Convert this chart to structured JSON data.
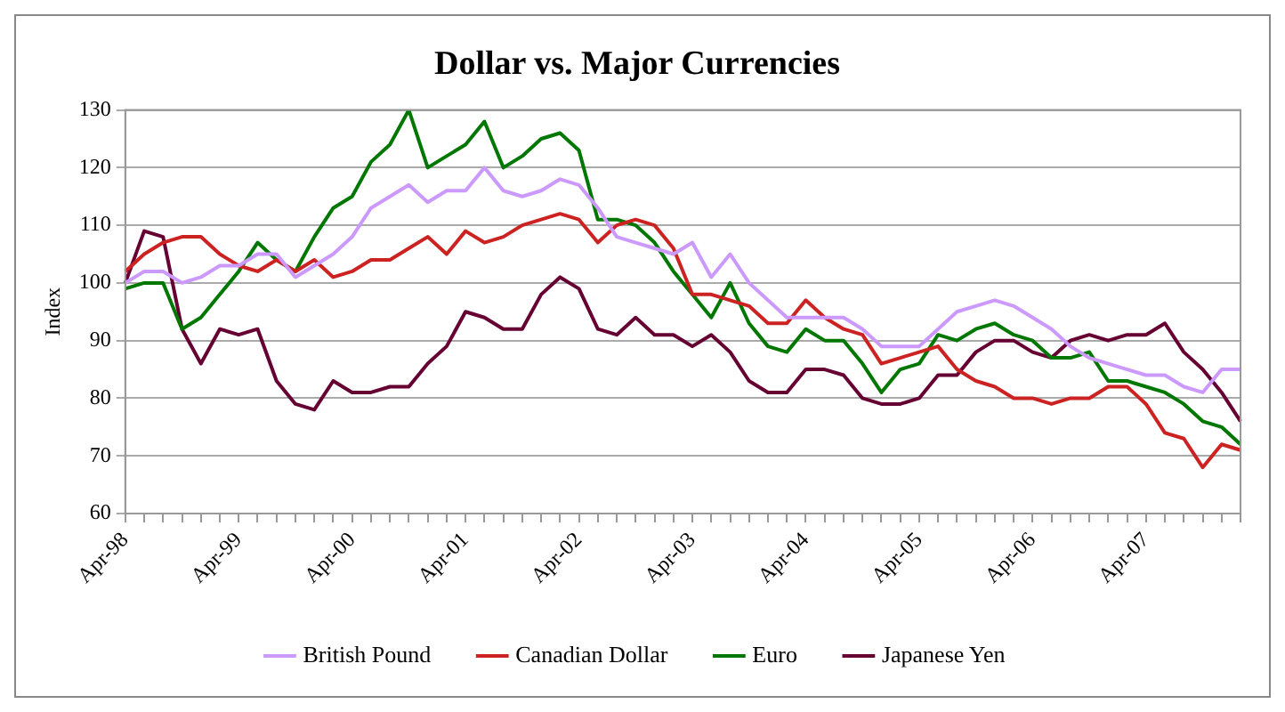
{
  "chart_data": {
    "type": "line",
    "title": "Dollar vs. Major Currencies",
    "ylabel": "Index",
    "categories": [
      "Apr-98",
      null,
      null,
      null,
      null,
      null,
      "Apr-99",
      null,
      null,
      null,
      null,
      null,
      "Apr-00",
      null,
      null,
      null,
      null,
      null,
      "Apr-01",
      null,
      null,
      null,
      null,
      null,
      "Apr-02",
      null,
      null,
      null,
      null,
      null,
      "Apr-03",
      null,
      null,
      null,
      null,
      null,
      "Apr-04",
      null,
      null,
      null,
      null,
      null,
      "Apr-05",
      null,
      null,
      null,
      null,
      null,
      "Apr-06",
      null,
      null,
      null,
      null,
      null,
      "Apr-07",
      null,
      null,
      null,
      null,
      null
    ],
    "series": [
      {
        "name": "British Pound",
        "color": "#cc99ff",
        "values": [
          100,
          102,
          102,
          100,
          101,
          103,
          103,
          105,
          105,
          101,
          103,
          105,
          108,
          113,
          115,
          117,
          114,
          116,
          116,
          120,
          116,
          115,
          116,
          118,
          117,
          113,
          108,
          107,
          106,
          105,
          107,
          101,
          105,
          100,
          97,
          94,
          94,
          94,
          94,
          92,
          89,
          89,
          89,
          92,
          95,
          96,
          97,
          96,
          94,
          92,
          89,
          87,
          86,
          85,
          84,
          84,
          82,
          81,
          85,
          85
        ]
      },
      {
        "name": "Canadian Dollar",
        "color": "#cc2222",
        "values": [
          102,
          105,
          107,
          108,
          108,
          105,
          103,
          102,
          104,
          102,
          104,
          101,
          102,
          104,
          104,
          106,
          108,
          105,
          109,
          107,
          108,
          110,
          111,
          112,
          111,
          107,
          110,
          111,
          110,
          106,
          98,
          98,
          97,
          96,
          93,
          93,
          97,
          94,
          92,
          91,
          86,
          87,
          88,
          89,
          85,
          83,
          82,
          80,
          80,
          79,
          80,
          80,
          82,
          82,
          79,
          74,
          73,
          68,
          72,
          71
        ]
      },
      {
        "name": "Euro",
        "color": "#007700",
        "values": [
          99,
          100,
          100,
          92,
          94,
          98,
          102,
          107,
          104,
          102,
          108,
          113,
          115,
          121,
          124,
          130,
          120,
          122,
          124,
          128,
          120,
          122,
          125,
          126,
          123,
          111,
          111,
          110,
          107,
          102,
          98,
          94,
          100,
          93,
          89,
          88,
          92,
          90,
          90,
          86,
          81,
          85,
          86,
          91,
          90,
          92,
          93,
          91,
          90,
          87,
          87,
          88,
          83,
          83,
          82,
          81,
          79,
          76,
          75,
          72
        ]
      },
      {
        "name": "Japanese Yen",
        "color": "#660033",
        "values": [
          100,
          109,
          108,
          92,
          86,
          92,
          91,
          92,
          83,
          79,
          78,
          83,
          81,
          81,
          82,
          82,
          86,
          89,
          95,
          94,
          92,
          92,
          98,
          101,
          99,
          92,
          91,
          94,
          91,
          91,
          89,
          91,
          88,
          83,
          81,
          81,
          85,
          85,
          84,
          80,
          79,
          79,
          80,
          84,
          84,
          88,
          90,
          90,
          88,
          87,
          90,
          91,
          90,
          91,
          91,
          93,
          88,
          85,
          81,
          76
        ]
      }
    ],
    "ylim": [
      60,
      130
    ],
    "yticks": [
      60,
      70,
      80,
      90,
      100,
      110,
      120,
      130
    ],
    "grid": "y",
    "legend": "bottom",
    "marker": "none",
    "line_style": "solid"
  }
}
